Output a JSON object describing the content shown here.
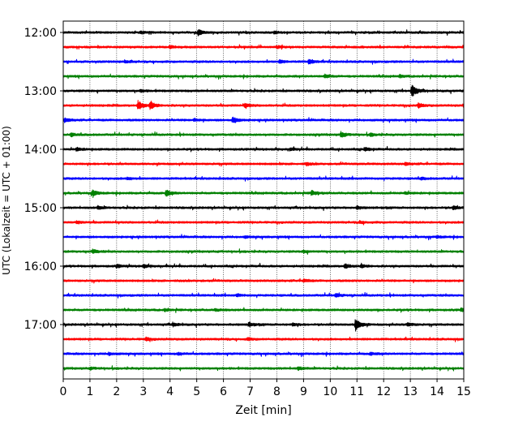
{
  "chart_data": {
    "type": "line",
    "xlabel": "Zeit  [min]",
    "ylabel": "UTC (Lokalzeit = UTC + 01:00)",
    "xlim": [
      0,
      15
    ],
    "x_ticks": [
      "0",
      "1",
      "2",
      "3",
      "4",
      "5",
      "6",
      "7",
      "8",
      "9",
      "10",
      "11",
      "12",
      "13",
      "14",
      "15"
    ],
    "y_tick_labels": [
      "12:00",
      "13:00",
      "14:00",
      "15:00",
      "16:00",
      "17:00"
    ],
    "grid": "vertical dotted lines at each minute",
    "trace_colors": [
      "#000000",
      "#ff0000",
      "#0000ff",
      "#008000"
    ],
    "traces": [
      {
        "start_utc": "12:00",
        "color": "#000000",
        "events": [
          {
            "t": 5.05,
            "amp": 1.6
          },
          {
            "t": 2.9,
            "amp": 0.6
          },
          {
            "t": 7.9,
            "amp": 0.5
          }
        ]
      },
      {
        "start_utc": "12:15",
        "color": "#ff0000",
        "events": [
          {
            "t": 8.0,
            "amp": 0.6
          },
          {
            "t": 4.0,
            "amp": 0.5
          }
        ]
      },
      {
        "start_utc": "12:30",
        "color": "#0000ff",
        "events": [
          {
            "t": 9.2,
            "amp": 1.3
          },
          {
            "t": 8.1,
            "amp": 0.7
          },
          {
            "t": 2.3,
            "amp": 0.5
          }
        ]
      },
      {
        "start_utc": "12:45",
        "color": "#008000",
        "events": [
          {
            "t": 9.8,
            "amp": 1.0
          },
          {
            "t": 12.6,
            "amp": 0.6
          }
        ]
      },
      {
        "start_utc": "13:00",
        "color": "#000000",
        "events": [
          {
            "t": 13.05,
            "amp": 3.5
          },
          {
            "t": 2.9,
            "amp": 0.5
          }
        ]
      },
      {
        "start_utc": "13:15",
        "color": "#ff0000",
        "events": [
          {
            "t": 2.8,
            "amp": 2.6
          },
          {
            "t": 3.25,
            "amp": 2.2
          },
          {
            "t": 6.8,
            "amp": 1.1
          },
          {
            "t": 13.3,
            "amp": 1.2
          },
          {
            "t": 15.0,
            "amp": 1.0
          }
        ]
      },
      {
        "start_utc": "13:30",
        "color": "#0000ff",
        "events": [
          {
            "t": 6.35,
            "amp": 1.6
          },
          {
            "t": 0.05,
            "amp": 1.0
          },
          {
            "t": 4.9,
            "amp": 0.6
          }
        ]
      },
      {
        "start_utc": "13:45",
        "color": "#008000",
        "events": [
          {
            "t": 10.4,
            "amp": 1.4
          },
          {
            "t": 11.5,
            "amp": 0.7
          },
          {
            "t": 0.3,
            "amp": 0.8
          }
        ]
      },
      {
        "start_utc": "14:00",
        "color": "#000000",
        "events": [
          {
            "t": 0.5,
            "amp": 0.8
          },
          {
            "t": 11.3,
            "amp": 0.9
          },
          {
            "t": 8.5,
            "amp": 0.6
          }
        ]
      },
      {
        "start_utc": "14:15",
        "color": "#ff0000",
        "events": [
          {
            "t": 9.1,
            "amp": 0.7
          },
          {
            "t": 12.8,
            "amp": 0.6
          }
        ]
      },
      {
        "start_utc": "14:30",
        "color": "#0000ff",
        "events": [
          {
            "t": 2.4,
            "amp": 0.6
          },
          {
            "t": 13.4,
            "amp": 0.5
          }
        ]
      },
      {
        "start_utc": "14:45",
        "color": "#008000",
        "events": [
          {
            "t": 1.1,
            "amp": 1.6
          },
          {
            "t": 3.85,
            "amp": 1.6
          },
          {
            "t": 9.3,
            "amp": 1.3
          },
          {
            "t": 12.8,
            "amp": 0.5
          }
        ]
      },
      {
        "start_utc": "15:00",
        "color": "#000000",
        "events": [
          {
            "t": 1.3,
            "amp": 0.8
          },
          {
            "t": 14.6,
            "amp": 1.0
          },
          {
            "t": 11.0,
            "amp": 0.7
          }
        ]
      },
      {
        "start_utc": "15:15",
        "color": "#ff0000",
        "events": [
          {
            "t": 0.5,
            "amp": 0.6
          },
          {
            "t": 11.1,
            "amp": 0.6
          }
        ]
      },
      {
        "start_utc": "15:30",
        "color": "#0000ff",
        "events": [
          {
            "t": 14.0,
            "amp": 0.5
          },
          {
            "t": 6.8,
            "amp": 0.4
          }
        ]
      },
      {
        "start_utc": "15:45",
        "color": "#008000",
        "events": [
          {
            "t": 1.1,
            "amp": 1.0
          },
          {
            "t": 9.0,
            "amp": 0.6
          }
        ]
      },
      {
        "start_utc": "16:00",
        "color": "#000000",
        "events": [
          {
            "t": 10.55,
            "amp": 1.3
          },
          {
            "t": 2.0,
            "amp": 0.8
          },
          {
            "t": 3.0,
            "amp": 0.8
          },
          {
            "t": 11.15,
            "amp": 0.8
          }
        ]
      },
      {
        "start_utc": "16:15",
        "color": "#ff0000",
        "events": [
          {
            "t": 9.0,
            "amp": 0.8
          }
        ]
      },
      {
        "start_utc": "16:30",
        "color": "#0000ff",
        "events": [
          {
            "t": 10.2,
            "amp": 0.9
          },
          {
            "t": 6.5,
            "amp": 0.6
          }
        ]
      },
      {
        "start_utc": "16:45",
        "color": "#008000",
        "events": [
          {
            "t": 14.9,
            "amp": 0.9
          },
          {
            "t": 3.8,
            "amp": 0.6
          },
          {
            "t": 5.7,
            "amp": 0.6
          }
        ]
      },
      {
        "start_utc": "17:00",
        "color": "#000000",
        "events": [
          {
            "t": 10.95,
            "amp": 3.6
          },
          {
            "t": 6.95,
            "amp": 1.0
          },
          {
            "t": 4.1,
            "amp": 0.9
          },
          {
            "t": 12.9,
            "amp": 0.9
          },
          {
            "t": 8.6,
            "amp": 0.7
          }
        ]
      },
      {
        "start_utc": "17:15",
        "color": "#ff0000",
        "events": [
          {
            "t": 3.1,
            "amp": 0.8
          },
          {
            "t": 6.9,
            "amp": 0.6
          }
        ]
      },
      {
        "start_utc": "17:30",
        "color": "#0000ff",
        "events": [
          {
            "t": 1.7,
            "amp": 0.6
          },
          {
            "t": 4.3,
            "amp": 0.6
          },
          {
            "t": 11.5,
            "amp": 0.6
          }
        ]
      },
      {
        "start_utc": "17:45",
        "color": "#008000",
        "events": [
          {
            "t": 8.8,
            "amp": 0.8
          },
          {
            "t": 1.0,
            "amp": 0.5
          }
        ]
      }
    ]
  }
}
